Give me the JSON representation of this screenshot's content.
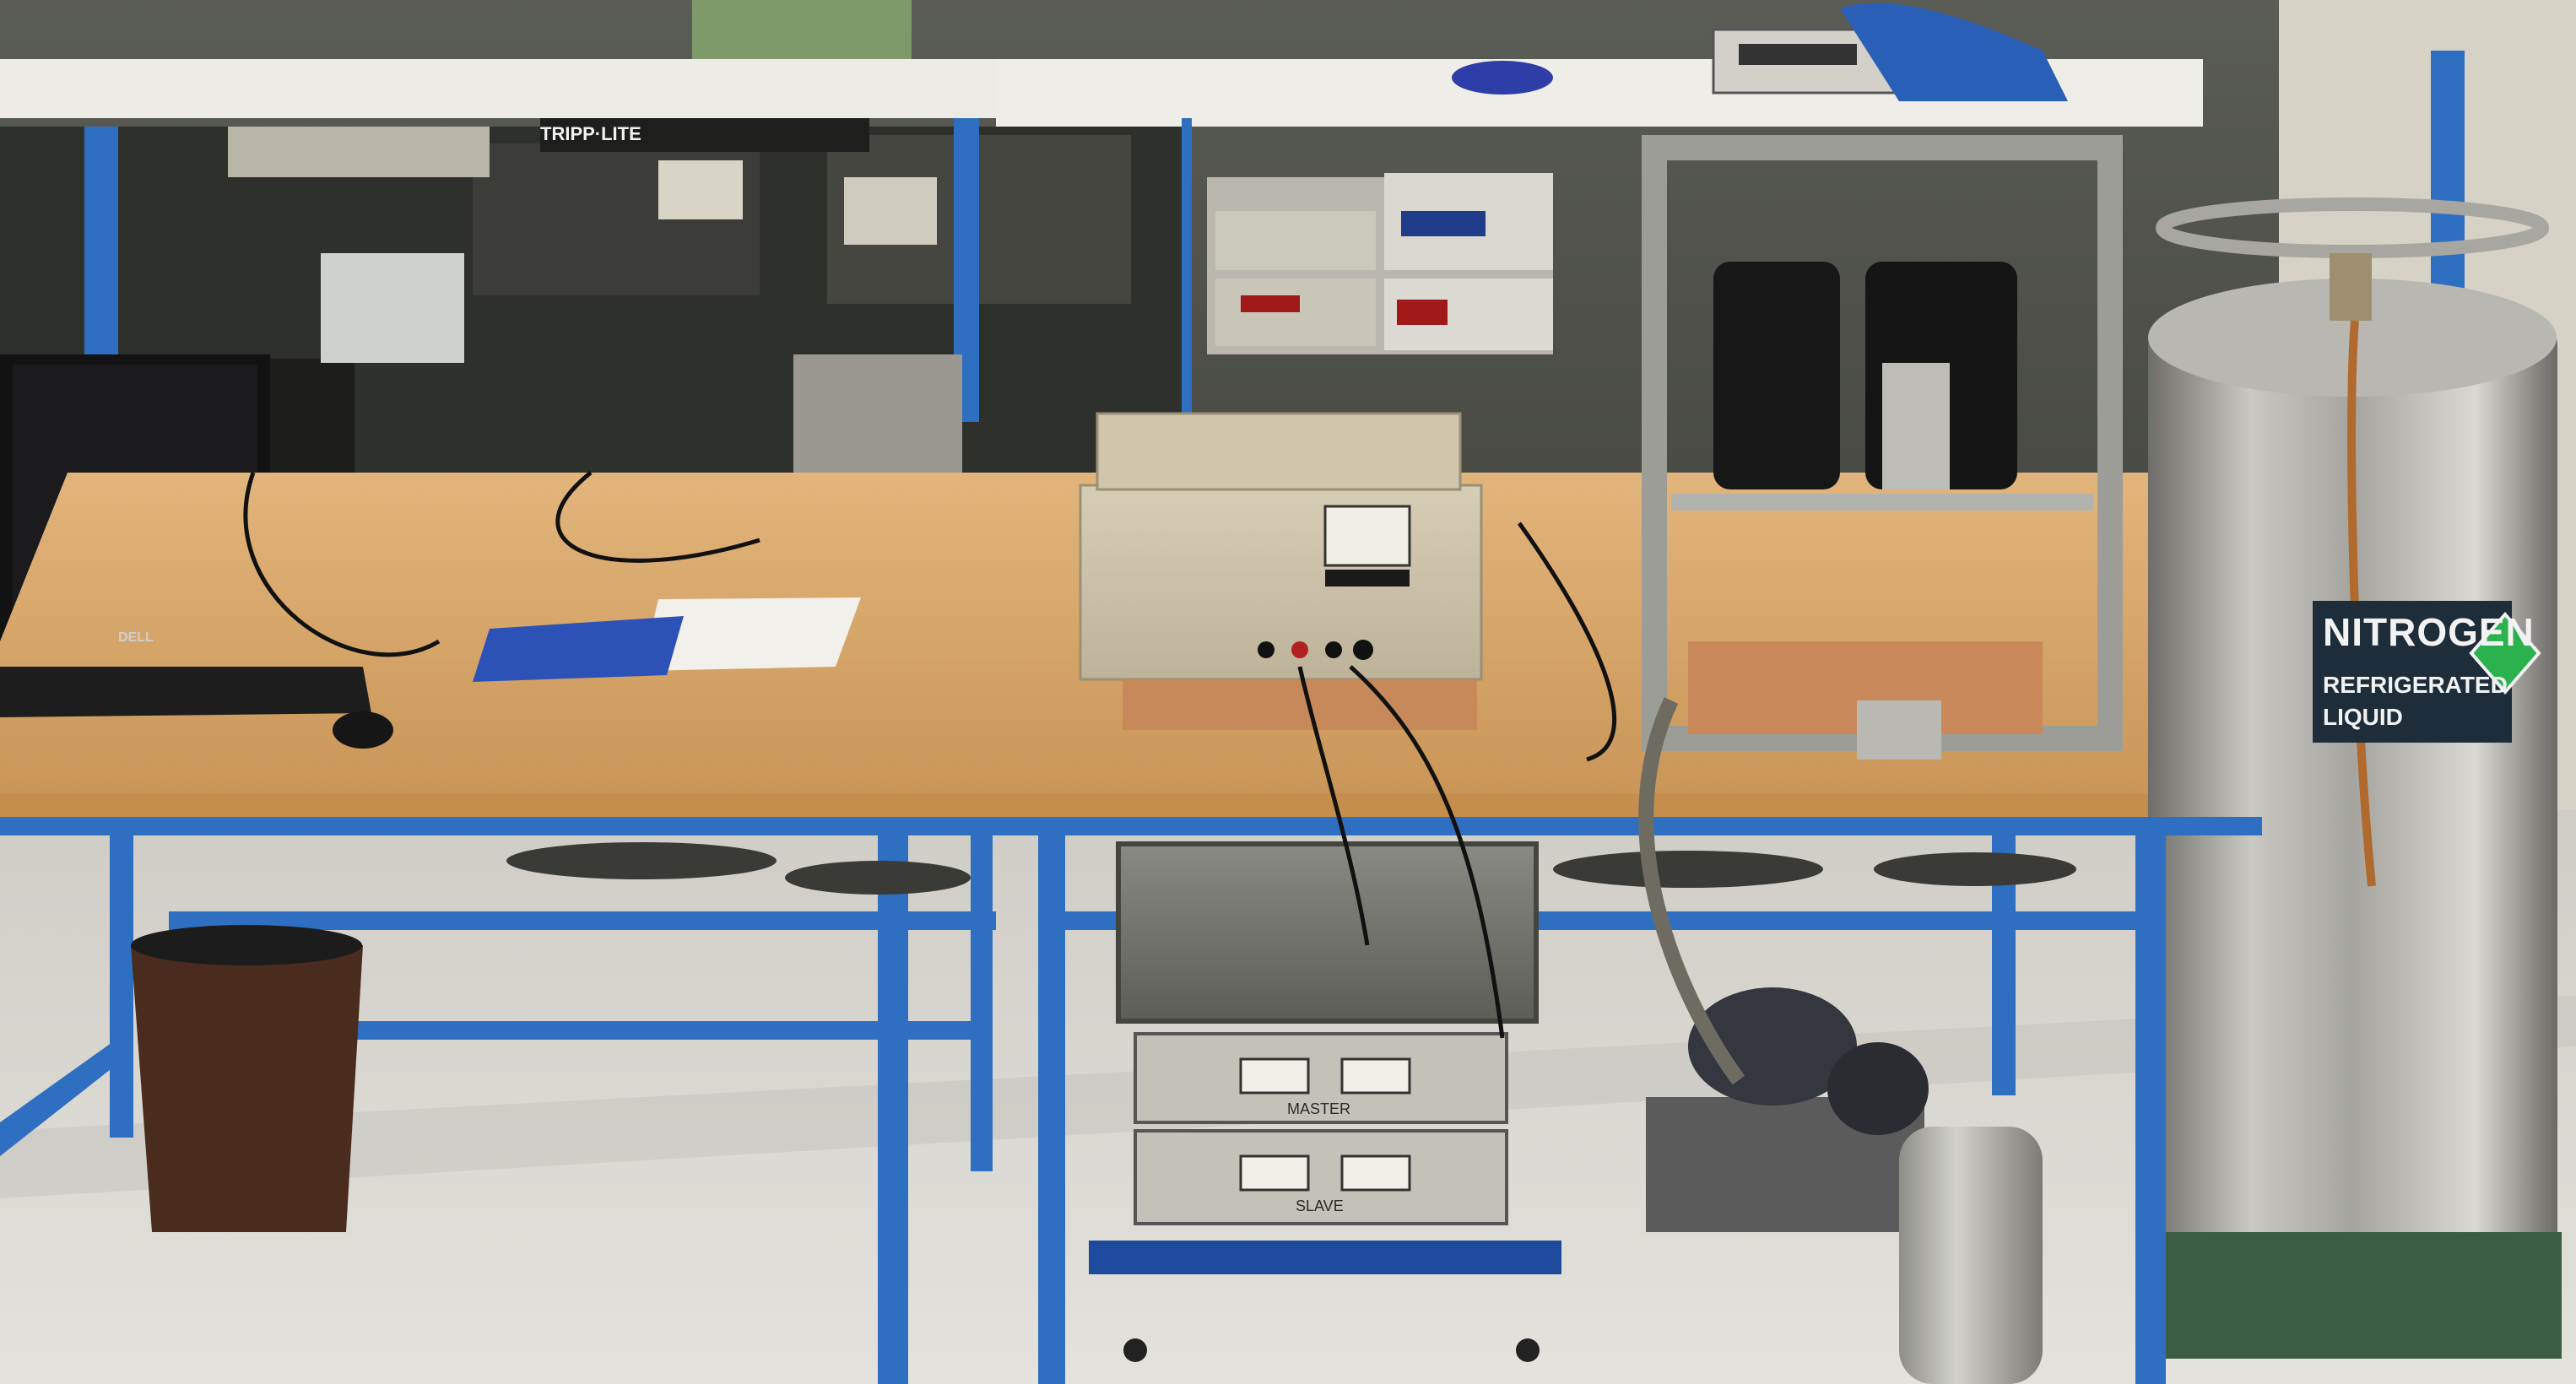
{
  "scene": {
    "description_free": true
  },
  "labels": {
    "tank_main": "NITROGEN",
    "tank_sub1": "REFRIGERATED",
    "tank_sub2": "LIQUID",
    "power_supply_master": "MASTER",
    "power_supply_slave": "SLAVE",
    "power_strip_brand": "TRIPP·LITE",
    "monitor_brand": "DELL"
  },
  "colors": {
    "frame_blue": "#2f6fc2",
    "bench_wood": "#d9a86c",
    "floor": "#d8d6cf",
    "tank_steel": "#a7a7a2",
    "tank_label_bg": "#1e2d3a",
    "tank_diamond": "#2bb24f"
  }
}
